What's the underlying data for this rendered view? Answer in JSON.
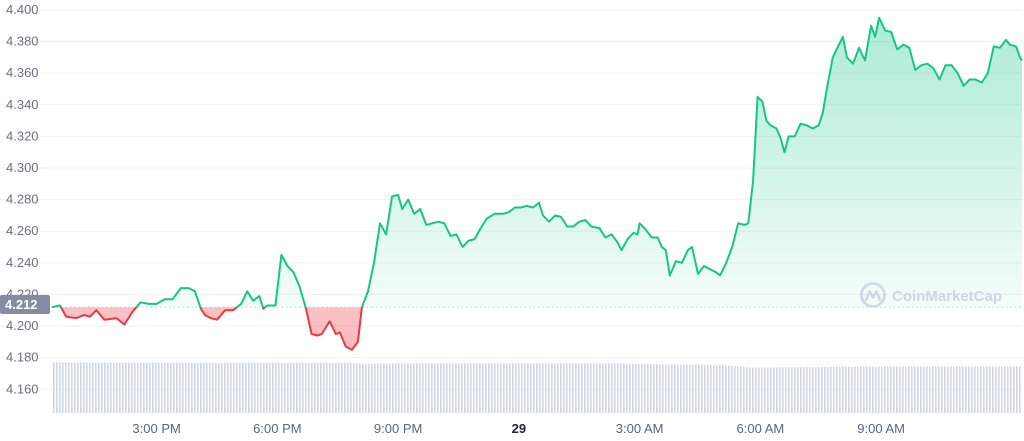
{
  "watermark": "CoinMarketCap",
  "colors": {
    "up": "#16c784",
    "down": "#ea3943",
    "grid": "#eff2f5",
    "volume": "#cfd6e4",
    "badge": "#858ca2",
    "axis_text": "#58667e"
  },
  "chart_data": {
    "type": "line",
    "title": "",
    "xlabel": "",
    "ylabel": "",
    "ylim": [
      4.145,
      4.405
    ],
    "y_ticks": [
      "4.160",
      "4.180",
      "4.200",
      "4.220",
      "4.240",
      "4.260",
      "4.280",
      "4.300",
      "4.320",
      "4.340",
      "4.360",
      "4.380",
      "4.400"
    ],
    "x_ticks": [
      {
        "label": "3:00 PM",
        "x": 3,
        "bold": false
      },
      {
        "label": "6:00 PM",
        "x": 6,
        "bold": false
      },
      {
        "label": "9:00 PM",
        "x": 9,
        "bold": false
      },
      {
        "label": "29",
        "x": 12,
        "bold": true
      },
      {
        "label": "3:00 AM",
        "x": 15,
        "bold": false
      },
      {
        "label": "6:00 AM",
        "x": 18,
        "bold": false
      },
      {
        "label": "9:00 AM",
        "x": 21,
        "bold": false
      }
    ],
    "xlim": [
      0.4,
      24.5
    ],
    "reference_price": 4.212,
    "reference_label": "4.212",
    "grid": true,
    "series": [
      {
        "values": [
          [
            0.4,
            4.212
          ],
          [
            0.6,
            4.213
          ],
          [
            0.75,
            4.206
          ],
          [
            1.0,
            4.205
          ],
          [
            1.2,
            4.207
          ],
          [
            1.35,
            4.206
          ],
          [
            1.5,
            4.21
          ],
          [
            1.7,
            4.204
          ],
          [
            2.0,
            4.205
          ],
          [
            2.2,
            4.201
          ],
          [
            2.4,
            4.209
          ],
          [
            2.6,
            4.215
          ],
          [
            2.8,
            4.214
          ],
          [
            3.0,
            4.214
          ],
          [
            3.2,
            4.217
          ],
          [
            3.4,
            4.217
          ],
          [
            3.6,
            4.224
          ],
          [
            3.8,
            4.224
          ],
          [
            3.95,
            4.222
          ],
          [
            4.1,
            4.211
          ],
          [
            4.2,
            4.207
          ],
          [
            4.35,
            4.205
          ],
          [
            4.5,
            4.204
          ],
          [
            4.7,
            4.21
          ],
          [
            4.9,
            4.21
          ],
          [
            5.1,
            4.214
          ],
          [
            5.25,
            4.222
          ],
          [
            5.4,
            4.216
          ],
          [
            5.55,
            4.219
          ],
          [
            5.65,
            4.211
          ],
          [
            5.75,
            4.213
          ],
          [
            5.95,
            4.213
          ],
          [
            6.1,
            4.245
          ],
          [
            6.25,
            4.238
          ],
          [
            6.4,
            4.234
          ],
          [
            6.55,
            4.225
          ],
          [
            6.7,
            4.212
          ],
          [
            6.85,
            4.195
          ],
          [
            7.0,
            4.194
          ],
          [
            7.1,
            4.195
          ],
          [
            7.3,
            4.203
          ],
          [
            7.45,
            4.195
          ],
          [
            7.55,
            4.196
          ],
          [
            7.7,
            4.187
          ],
          [
            7.85,
            4.185
          ],
          [
            8.0,
            4.19
          ],
          [
            8.1,
            4.212
          ],
          [
            8.25,
            4.222
          ],
          [
            8.4,
            4.24
          ],
          [
            8.55,
            4.265
          ],
          [
            8.7,
            4.258
          ],
          [
            8.85,
            4.282
          ],
          [
            9.0,
            4.283
          ],
          [
            9.1,
            4.274
          ],
          [
            9.25,
            4.28
          ],
          [
            9.4,
            4.271
          ],
          [
            9.55,
            4.274
          ],
          [
            9.7,
            4.264
          ],
          [
            9.85,
            4.265
          ],
          [
            10.0,
            4.266
          ],
          [
            10.15,
            4.265
          ],
          [
            10.3,
            4.257
          ],
          [
            10.45,
            4.258
          ],
          [
            10.6,
            4.25
          ],
          [
            10.75,
            4.254
          ],
          [
            10.9,
            4.255
          ],
          [
            11.05,
            4.262
          ],
          [
            11.2,
            4.268
          ],
          [
            11.4,
            4.271
          ],
          [
            11.6,
            4.271
          ],
          [
            11.75,
            4.272
          ],
          [
            11.9,
            4.275
          ],
          [
            12.05,
            4.275
          ],
          [
            12.2,
            4.276
          ],
          [
            12.35,
            4.275
          ],
          [
            12.5,
            4.278
          ],
          [
            12.6,
            4.27
          ],
          [
            12.75,
            4.266
          ],
          [
            12.9,
            4.27
          ],
          [
            13.05,
            4.269
          ],
          [
            13.2,
            4.263
          ],
          [
            13.35,
            4.263
          ],
          [
            13.5,
            4.266
          ],
          [
            13.65,
            4.267
          ],
          [
            13.8,
            4.263
          ],
          [
            14.0,
            4.262
          ],
          [
            14.15,
            4.256
          ],
          [
            14.3,
            4.258
          ],
          [
            14.45,
            4.253
          ],
          [
            14.55,
            4.248
          ],
          [
            14.7,
            4.255
          ],
          [
            14.85,
            4.259
          ],
          [
            14.95,
            4.258
          ],
          [
            15.0,
            4.265
          ],
          [
            15.15,
            4.261
          ],
          [
            15.3,
            4.256
          ],
          [
            15.45,
            4.256
          ],
          [
            15.55,
            4.25
          ],
          [
            15.65,
            4.248
          ],
          [
            15.75,
            4.232
          ],
          [
            15.9,
            4.241
          ],
          [
            16.05,
            4.24
          ],
          [
            16.2,
            4.248
          ],
          [
            16.3,
            4.25
          ],
          [
            16.45,
            4.233
          ],
          [
            16.6,
            4.238
          ],
          [
            16.75,
            4.236
          ],
          [
            16.9,
            4.234
          ],
          [
            17.0,
            4.232
          ],
          [
            17.15,
            4.24
          ],
          [
            17.3,
            4.25
          ],
          [
            17.45,
            4.265
          ],
          [
            17.6,
            4.264
          ],
          [
            17.7,
            4.265
          ],
          [
            17.82,
            4.292
          ],
          [
            17.93,
            4.345
          ],
          [
            18.05,
            4.342
          ],
          [
            18.15,
            4.33
          ],
          [
            18.25,
            4.327
          ],
          [
            18.4,
            4.325
          ],
          [
            18.5,
            4.319
          ],
          [
            18.6,
            4.31
          ],
          [
            18.7,
            4.32
          ],
          [
            18.85,
            4.32
          ],
          [
            19.0,
            4.328
          ],
          [
            19.15,
            4.327
          ],
          [
            19.3,
            4.325
          ],
          [
            19.45,
            4.327
          ],
          [
            19.55,
            4.335
          ],
          [
            19.65,
            4.35
          ],
          [
            19.8,
            4.37
          ],
          [
            19.95,
            4.378
          ],
          [
            20.05,
            4.383
          ],
          [
            20.15,
            4.37
          ],
          [
            20.3,
            4.366
          ],
          [
            20.45,
            4.376
          ],
          [
            20.6,
            4.368
          ],
          [
            20.75,
            4.39
          ],
          [
            20.85,
            4.383
          ],
          [
            20.95,
            4.395
          ],
          [
            21.1,
            4.387
          ],
          [
            21.25,
            4.386
          ],
          [
            21.4,
            4.375
          ],
          [
            21.55,
            4.378
          ],
          [
            21.7,
            4.376
          ],
          [
            21.85,
            4.362
          ],
          [
            22.0,
            4.365
          ],
          [
            22.15,
            4.366
          ],
          [
            22.3,
            4.363
          ],
          [
            22.45,
            4.356
          ],
          [
            22.6,
            4.365
          ],
          [
            22.75,
            4.365
          ],
          [
            22.9,
            4.36
          ],
          [
            23.05,
            4.352
          ],
          [
            23.2,
            4.356
          ],
          [
            23.35,
            4.356
          ],
          [
            23.5,
            4.354
          ],
          [
            23.65,
            4.36
          ],
          [
            23.8,
            4.377
          ],
          [
            23.95,
            4.376
          ],
          [
            24.1,
            4.381
          ],
          [
            24.2,
            4.378
          ],
          [
            24.35,
            4.377
          ],
          [
            24.45,
            4.37
          ],
          [
            24.5,
            4.368
          ]
        ]
      }
    ],
    "volume": {
      "ylim": [
        0,
        100
      ],
      "values": [
        [
          0.4,
          56
        ],
        [
          3.0,
          55
        ],
        [
          6.0,
          54
        ],
        [
          7.9,
          54
        ],
        [
          8.1,
          52
        ],
        [
          8.5,
          52
        ],
        [
          9.0,
          53
        ],
        [
          11.5,
          53
        ],
        [
          14.5,
          53
        ],
        [
          15.0,
          51
        ],
        [
          16.0,
          49
        ],
        [
          16.5,
          48
        ],
        [
          17.0,
          47
        ],
        [
          17.2,
          46
        ],
        [
          17.5,
          42
        ],
        [
          17.8,
          40
        ],
        [
          18.5,
          41
        ],
        [
          19.5,
          42
        ],
        [
          21.0,
          43
        ],
        [
          22.5,
          43
        ],
        [
          24.5,
          44
        ]
      ]
    }
  }
}
